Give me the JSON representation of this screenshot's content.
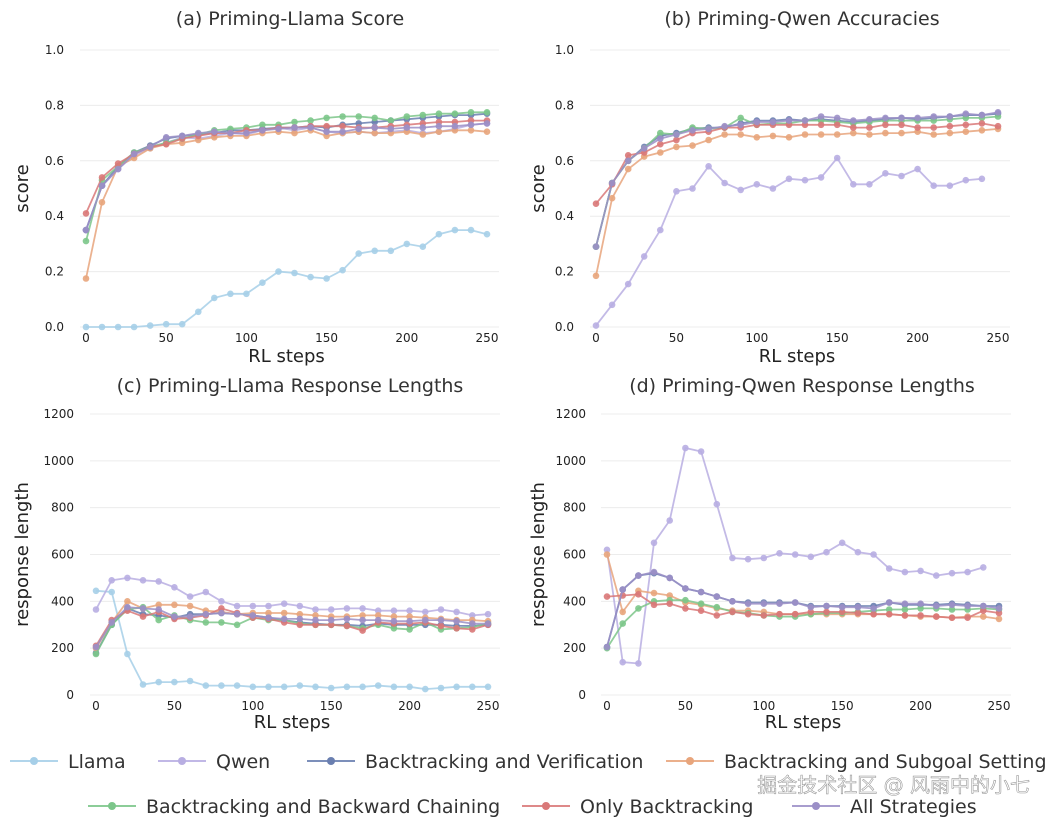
{
  "chart_data": [
    {
      "type": "line",
      "title": "(a) Priming-Llama Score",
      "xlabel": "RL steps",
      "ylabel": "score",
      "xlim": [
        0,
        250
      ],
      "ylim": [
        0,
        1.0
      ],
      "xticks": [
        0,
        50,
        100,
        150,
        200,
        250
      ],
      "yticks": [
        0.0,
        0.2,
        0.4,
        0.6,
        0.8,
        1.0
      ],
      "ytick_labels": [
        "0.0",
        "0.2",
        "0.4",
        "0.6",
        "0.8",
        "1.0"
      ],
      "x": [
        0,
        10,
        20,
        30,
        40,
        50,
        60,
        70,
        80,
        90,
        100,
        110,
        120,
        130,
        140,
        150,
        160,
        170,
        180,
        190,
        200,
        210,
        220,
        230,
        240,
        250
      ],
      "series": [
        {
          "name": "Llama",
          "values": [
            0.0,
            0.0,
            0.0,
            0.0,
            0.005,
            0.01,
            0.01,
            0.055,
            0.105,
            0.12,
            0.12,
            0.16,
            0.2,
            0.195,
            0.18,
            0.175,
            0.205,
            0.265,
            0.275,
            0.275,
            0.3,
            0.29,
            0.335,
            0.35,
            0.35,
            0.335
          ]
        },
        {
          "name": "Qwen",
          "values": [
            0.35,
            0.51,
            0.57,
            0.62,
            0.645,
            0.665,
            0.685,
            0.68,
            0.69,
            0.7,
            0.695,
            0.71,
            0.72,
            0.71,
            0.72,
            0.705,
            0.7,
            0.705,
            0.7,
            0.705,
            0.71,
            0.7,
            0.705,
            0.715,
            0.73,
            0.735
          ]
        },
        {
          "name": "Backtracking and Verification",
          "values": [
            0.35,
            0.51,
            0.58,
            0.63,
            0.655,
            0.68,
            0.69,
            0.695,
            0.7,
            0.71,
            0.71,
            0.715,
            0.72,
            0.72,
            0.725,
            0.72,
            0.73,
            0.735,
            0.74,
            0.745,
            0.75,
            0.755,
            0.76,
            0.765,
            0.765,
            0.77
          ]
        },
        {
          "name": "Backtracking and Subgoal Setting",
          "values": [
            0.175,
            0.45,
            0.58,
            0.61,
            0.645,
            0.66,
            0.665,
            0.675,
            0.685,
            0.69,
            0.69,
            0.7,
            0.705,
            0.7,
            0.71,
            0.69,
            0.7,
            0.705,
            0.7,
            0.7,
            0.705,
            0.695,
            0.705,
            0.71,
            0.71,
            0.705
          ]
        },
        {
          "name": "Backtracking and Backward Chaining",
          "values": [
            0.31,
            0.53,
            0.58,
            0.63,
            0.65,
            0.665,
            0.68,
            0.695,
            0.71,
            0.715,
            0.72,
            0.73,
            0.73,
            0.74,
            0.745,
            0.755,
            0.76,
            0.76,
            0.755,
            0.745,
            0.76,
            0.765,
            0.77,
            0.77,
            0.775,
            0.775
          ]
        },
        {
          "name": "Only Backtracking",
          "values": [
            0.41,
            0.54,
            0.59,
            0.625,
            0.65,
            0.66,
            0.68,
            0.69,
            0.7,
            0.7,
            0.71,
            0.71,
            0.72,
            0.72,
            0.725,
            0.725,
            0.725,
            0.72,
            0.72,
            0.725,
            0.73,
            0.735,
            0.74,
            0.74,
            0.745,
            0.745
          ]
        },
        {
          "name": "All Strategies",
          "values": [
            0.35,
            0.51,
            0.57,
            0.625,
            0.65,
            0.685,
            0.69,
            0.7,
            0.705,
            0.7,
            0.7,
            0.71,
            0.715,
            0.72,
            0.72,
            0.705,
            0.705,
            0.715,
            0.72,
            0.715,
            0.72,
            0.72,
            0.725,
            0.725,
            0.73,
            0.735
          ]
        }
      ]
    },
    {
      "type": "line",
      "title": "(b) Priming-Qwen Accuracies",
      "xlabel": "RL steps",
      "ylabel": "score",
      "xlim": [
        0,
        250
      ],
      "ylim": [
        0,
        1.0
      ],
      "xticks": [
        0,
        50,
        100,
        150,
        200,
        250
      ],
      "yticks": [
        0.0,
        0.2,
        0.4,
        0.6,
        0.8,
        1.0
      ],
      "ytick_labels": [
        "0.0",
        "0.2",
        "0.4",
        "0.6",
        "0.8",
        "1.0"
      ],
      "x": [
        0,
        10,
        20,
        30,
        40,
        50,
        60,
        70,
        80,
        90,
        100,
        110,
        120,
        130,
        140,
        150,
        160,
        170,
        180,
        190,
        200,
        210,
        220,
        230,
        240,
        250
      ],
      "series": [
        {
          "name": "Qwen",
          "values": [
            0.005,
            0.08,
            0.155,
            0.255,
            0.35,
            0.49,
            0.5,
            0.58,
            0.52,
            0.495,
            0.515,
            0.5,
            0.535,
            0.53,
            0.54,
            0.61,
            0.515,
            0.515,
            0.555,
            0.545,
            0.57,
            0.51,
            0.51,
            0.53,
            0.535,
            null
          ]
        },
        {
          "name": "Backtracking and Verification",
          "values": [
            0.29,
            0.52,
            0.6,
            0.65,
            0.69,
            0.7,
            0.715,
            0.72,
            0.72,
            0.735,
            0.745,
            0.745,
            0.75,
            0.745,
            0.75,
            0.745,
            0.74,
            0.745,
            0.75,
            0.755,
            0.75,
            0.755,
            0.76,
            0.765,
            0.765,
            0.77
          ]
        },
        {
          "name": "Backtracking and Subgoal Setting",
          "values": [
            0.185,
            0.465,
            0.57,
            0.615,
            0.63,
            0.65,
            0.655,
            0.675,
            0.695,
            0.695,
            0.685,
            0.69,
            0.685,
            0.695,
            0.695,
            0.695,
            0.7,
            0.695,
            0.7,
            0.7,
            0.705,
            0.695,
            0.7,
            0.705,
            0.71,
            0.715
          ]
        },
        {
          "name": "Backtracking and Backward Chaining",
          "values": [
            0.29,
            0.52,
            0.6,
            0.645,
            0.7,
            0.695,
            0.72,
            0.715,
            0.72,
            0.755,
            0.73,
            0.735,
            0.735,
            0.745,
            0.745,
            0.74,
            0.735,
            0.74,
            0.745,
            0.745,
            0.745,
            0.745,
            0.75,
            0.755,
            0.755,
            0.76
          ]
        },
        {
          "name": "Only Backtracking",
          "values": [
            0.445,
            0.515,
            0.62,
            0.63,
            0.66,
            0.675,
            0.7,
            0.705,
            0.72,
            0.72,
            0.73,
            0.73,
            0.73,
            0.73,
            0.73,
            0.73,
            0.72,
            0.72,
            0.73,
            0.73,
            0.72,
            0.72,
            0.725,
            0.73,
            0.735,
            0.725
          ]
        },
        {
          "name": "All Strategies",
          "values": [
            0.29,
            0.52,
            0.6,
            0.645,
            0.68,
            0.695,
            0.71,
            0.715,
            0.725,
            0.73,
            0.74,
            0.74,
            0.745,
            0.745,
            0.76,
            0.755,
            0.745,
            0.75,
            0.755,
            0.755,
            0.755,
            0.76,
            0.76,
            0.77,
            0.765,
            0.775
          ]
        }
      ]
    },
    {
      "type": "line",
      "title": "(c) Priming-Llama Response Lengths",
      "xlabel": "RL steps",
      "ylabel": "response length",
      "xlim": [
        0,
        250
      ],
      "ylim": [
        0,
        1200
      ],
      "xticks": [
        0,
        50,
        100,
        150,
        200,
        250
      ],
      "yticks": [
        0,
        200,
        400,
        600,
        800,
        1000,
        1200
      ],
      "ytick_labels": [
        "0",
        "200",
        "400",
        "600",
        "800",
        "1000",
        "1200"
      ],
      "x": [
        0,
        10,
        20,
        30,
        40,
        50,
        60,
        70,
        80,
        90,
        100,
        110,
        120,
        130,
        140,
        150,
        160,
        170,
        180,
        190,
        200,
        210,
        220,
        230,
        240,
        250
      ],
      "series": [
        {
          "name": "Llama",
          "values": [
            445,
            440,
            175,
            45,
            55,
            55,
            60,
            40,
            40,
            40,
            35,
            35,
            35,
            40,
            35,
            30,
            35,
            35,
            40,
            35,
            35,
            25,
            30,
            35,
            35,
            35
          ]
        },
        {
          "name": "Qwen",
          "values": [
            365,
            490,
            500,
            490,
            485,
            460,
            420,
            440,
            400,
            380,
            380,
            380,
            390,
            380,
            365,
            365,
            370,
            370,
            360,
            360,
            360,
            355,
            365,
            355,
            340,
            345
          ]
        },
        {
          "name": "Backtracking and Verification",
          "values": [
            180,
            300,
            370,
            345,
            340,
            330,
            345,
            345,
            350,
            345,
            340,
            330,
            320,
            310,
            305,
            300,
            300,
            295,
            305,
            300,
            300,
            300,
            300,
            295,
            295,
            300
          ]
        },
        {
          "name": "Backtracking and Subgoal Setting",
          "values": [
            200,
            310,
            400,
            370,
            385,
            385,
            380,
            360,
            355,
            345,
            350,
            350,
            350,
            345,
            340,
            335,
            335,
            340,
            340,
            335,
            335,
            330,
            325,
            320,
            320,
            315
          ]
        },
        {
          "name": "Backtracking and Backward Chaining",
          "values": [
            175,
            300,
            365,
            375,
            320,
            340,
            320,
            310,
            310,
            300,
            330,
            320,
            320,
            305,
            300,
            300,
            295,
            285,
            300,
            285,
            280,
            310,
            280,
            285,
            290,
            305
          ]
        },
        {
          "name": "Only Backtracking",
          "values": [
            210,
            320,
            360,
            335,
            355,
            325,
            330,
            340,
            370,
            350,
            330,
            325,
            310,
            300,
            300,
            300,
            295,
            275,
            310,
            305,
            305,
            310,
            295,
            285,
            280,
            300
          ]
        },
        {
          "name": "All Strategies",
          "values": [
            205,
            310,
            375,
            370,
            365,
            335,
            335,
            345,
            350,
            345,
            340,
            330,
            325,
            325,
            320,
            320,
            325,
            320,
            320,
            315,
            315,
            320,
            320,
            315,
            305,
            305
          ]
        }
      ]
    },
    {
      "type": "line",
      "title": "(d) Priming-Qwen Response Lengths",
      "xlabel": "RL steps",
      "ylabel": "response length",
      "xlim": [
        0,
        250
      ],
      "ylim": [
        0,
        1200
      ],
      "xticks": [
        0,
        50,
        100,
        150,
        200,
        250
      ],
      "yticks": [
        0,
        200,
        400,
        600,
        800,
        1000,
        1200
      ],
      "ytick_labels": [
        "0",
        "200",
        "400",
        "600",
        "800",
        "1000",
        "1200"
      ],
      "x": [
        0,
        10,
        20,
        30,
        40,
        50,
        60,
        70,
        80,
        90,
        100,
        110,
        120,
        130,
        140,
        150,
        160,
        170,
        180,
        190,
        200,
        210,
        220,
        230,
        240,
        250
      ],
      "series": [
        {
          "name": "Qwen",
          "values": [
            620,
            140,
            135,
            650,
            745,
            1055,
            1040,
            815,
            585,
            580,
            585,
            605,
            600,
            590,
            610,
            650,
            610,
            600,
            540,
            525,
            530,
            510,
            520,
            525,
            545,
            null
          ]
        },
        {
          "name": "Backtracking and Verification",
          "values": [
            205,
            450,
            510,
            520,
            500,
            455,
            440,
            420,
            400,
            395,
            395,
            395,
            395,
            380,
            380,
            380,
            380,
            380,
            395,
            385,
            385,
            385,
            390,
            385,
            380,
            380
          ]
        },
        {
          "name": "Backtracking and Subgoal Setting",
          "values": [
            600,
            355,
            445,
            435,
            425,
            395,
            385,
            370,
            360,
            360,
            355,
            345,
            345,
            345,
            345,
            345,
            345,
            345,
            345,
            340,
            335,
            335,
            330,
            335,
            335,
            325
          ]
        },
        {
          "name": "Backtracking and Backward Chaining",
          "values": [
            200,
            305,
            370,
            400,
            405,
            405,
            390,
            375,
            355,
            350,
            340,
            335,
            335,
            345,
            350,
            350,
            355,
            360,
            365,
            365,
            370,
            370,
            365,
            365,
            370,
            365
          ]
        },
        {
          "name": "Only Backtracking",
          "values": [
            420,
            425,
            430,
            385,
            390,
            370,
            360,
            340,
            355,
            345,
            340,
            345,
            345,
            355,
            355,
            355,
            350,
            345,
            345,
            340,
            340,
            335,
            330,
            330,
            360,
            350
          ]
        },
        {
          "name": "All Strategies",
          "values": [
            205,
            450,
            510,
            525,
            500,
            455,
            440,
            420,
            400,
            390,
            390,
            390,
            395,
            375,
            380,
            375,
            375,
            370,
            395,
            390,
            390,
            380,
            385,
            380,
            380,
            370
          ]
        }
      ]
    }
  ],
  "legend": [
    {
      "name": "Llama",
      "color": "#a6cfe8"
    },
    {
      "name": "Qwen",
      "color": "#b8aee2"
    },
    {
      "name": "Backtracking and Verification",
      "color": "#6a7fb0"
    },
    {
      "name": "Backtracking and Subgoal Setting",
      "color": "#e8a57c"
    },
    {
      "name": "Backtracking and Backward Chaining",
      "color": "#7cc68a"
    },
    {
      "name": "Only Backtracking",
      "color": "#d97878"
    },
    {
      "name": "All Strategies",
      "color": "#9b8fc7"
    }
  ],
  "watermark": "掘金技术社区 @ 风雨中的小七"
}
